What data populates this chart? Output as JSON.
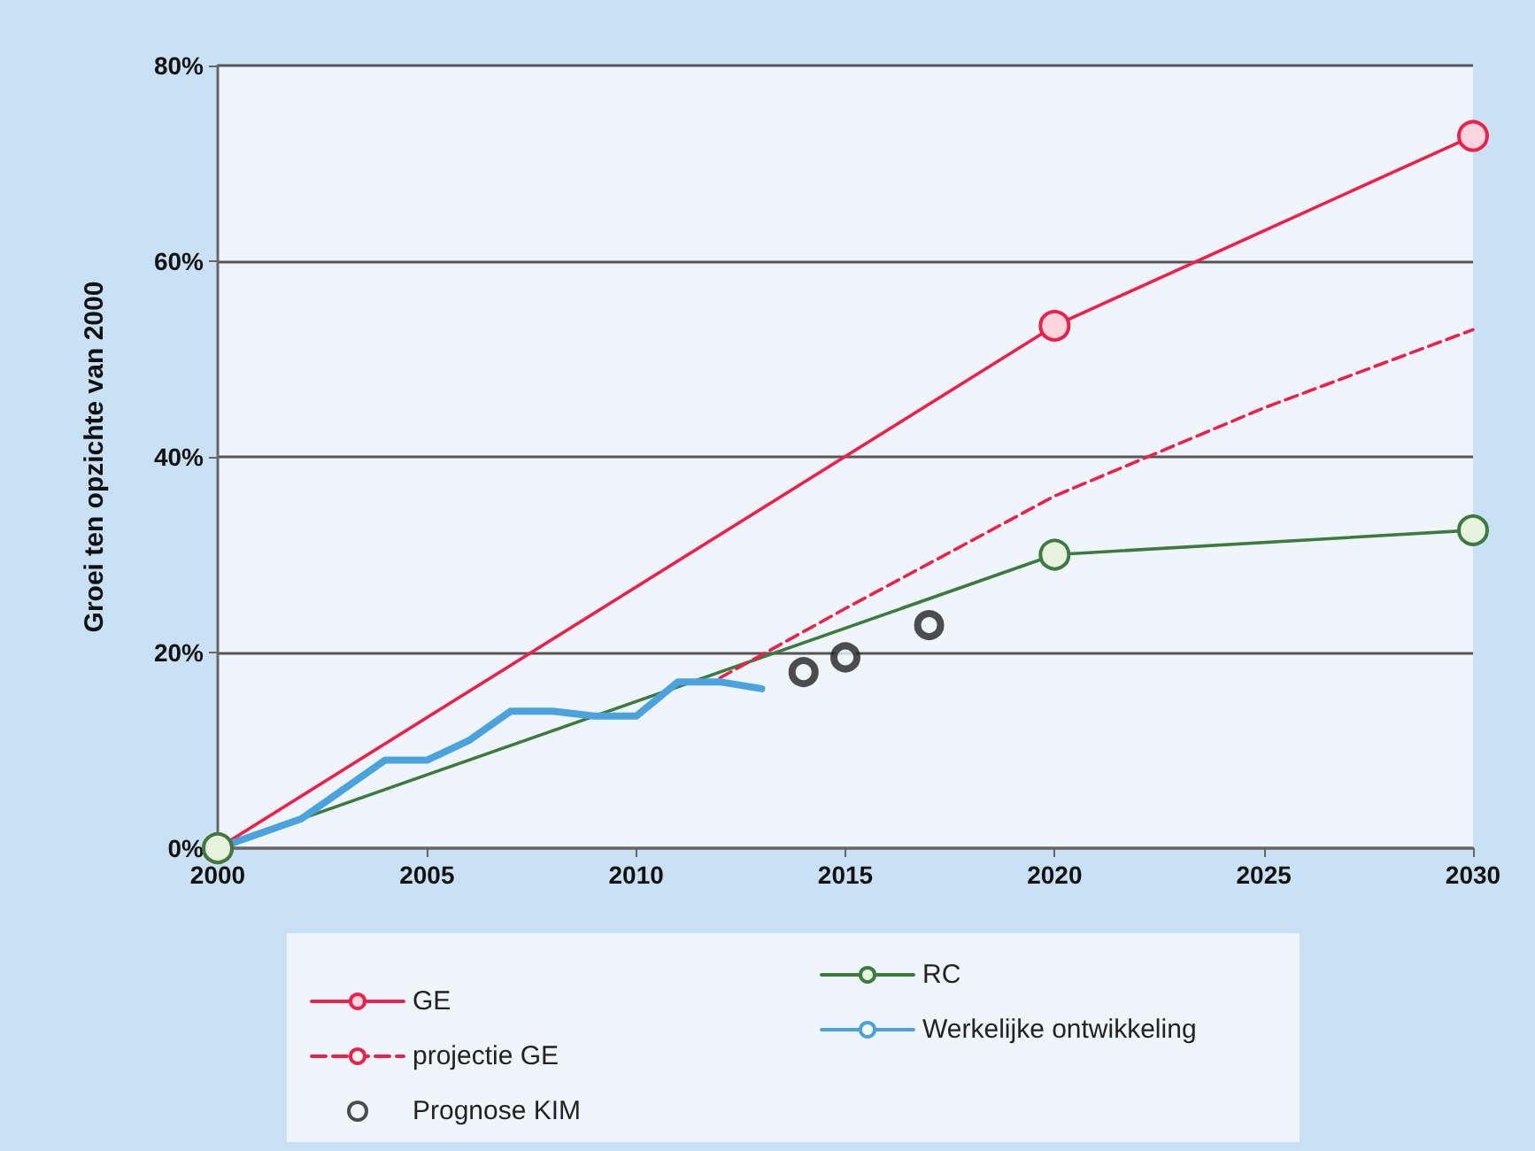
{
  "chart_data": {
    "type": "line",
    "ylabel": "Groei ten opzichte van 2000",
    "xlim": [
      2000,
      2030
    ],
    "xticks": [
      2000,
      2005,
      2010,
      2015,
      2020,
      2025,
      2030
    ],
    "ylim": [
      0,
      80
    ],
    "yticks": [
      {
        "value": 0,
        "label": "0%"
      },
      {
        "value": 20,
        "label": "20%"
      },
      {
        "value": 40,
        "label": "40%"
      },
      {
        "value": 60,
        "label": "60%"
      },
      {
        "value": 80,
        "label": "80%"
      }
    ],
    "grid": "y",
    "legend": "bottom",
    "series": [
      {
        "name": "GE",
        "color": "#f0204a",
        "marker": "circle",
        "line_style": "solid",
        "x": [
          2000,
          2020,
          2030
        ],
        "values": [
          0,
          53.4,
          72.8
        ]
      },
      {
        "name": "RC",
        "color": "#3d7a3d",
        "marker": "circle",
        "line_style": "solid",
        "x": [
          2000,
          2020,
          2030
        ],
        "values": [
          0,
          30,
          32.5
        ]
      },
      {
        "name": "projectie GE",
        "color": "#f0204a",
        "marker": "none",
        "line_style": "dashed",
        "x": [
          2012,
          2015,
          2020,
          2025,
          2030
        ],
        "values": [
          17.4,
          24.5,
          36,
          45,
          53
        ]
      },
      {
        "name": "Werkelijke ontwikkeling",
        "color": "#4aa3df",
        "marker": "none",
        "line_style": "solid",
        "x": [
          2000,
          2002,
          2004,
          2005,
          2006,
          2007,
          2008,
          2009,
          2010,
          2011,
          2012,
          2013
        ],
        "values": [
          0,
          3,
          9,
          9,
          11,
          14,
          14,
          13.5,
          13.5,
          17,
          17,
          16.3
        ]
      },
      {
        "name": "Prognose KIM",
        "type": "scatter",
        "color": "#222222",
        "marker": "circle",
        "x": [
          2014,
          2015,
          2017
        ],
        "values": [
          18,
          19.5,
          22.8
        ]
      }
    ]
  }
}
